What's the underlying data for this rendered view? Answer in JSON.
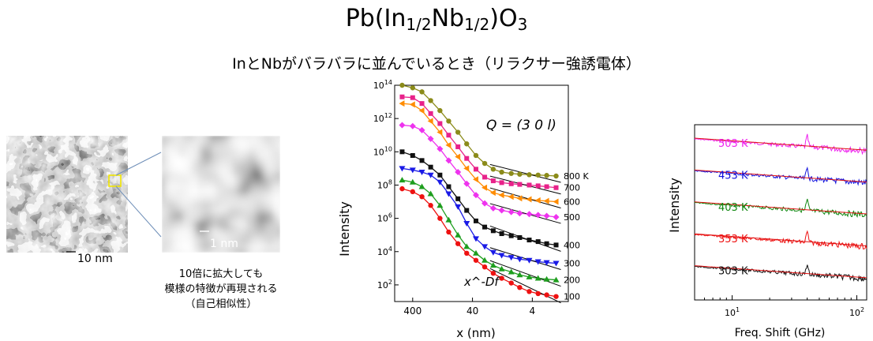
{
  "header": {
    "title_base": "Pb(In",
    "title_sub1": "1/2",
    "title_mid": "Nb",
    "title_sub2": "1/2",
    "title_mid2": ")O",
    "title_sub3": "3",
    "subtitle": "InとNbがバラバラに並んでいるとき（リラクサー強誘電体）"
  },
  "images": {
    "scale_small": "10 nm",
    "scale_large": "1 nm",
    "note_line1": "10倍に拡大しても",
    "note_line2": "模様の特徴が再現される",
    "note_line3": "（自己相似性）"
  },
  "chart_data": [
    {
      "type": "scatter",
      "annotation": "Q = (3 0 l)",
      "fit_label": "x^-Df",
      "xlabel": "x (nm)",
      "ylabel": "Intensity",
      "x_scale": "log",
      "x_reversed": true,
      "xlim": [
        800,
        1
      ],
      "y_scale": "log",
      "ylim": [
        10,
        100000000000000.0
      ],
      "x_tick_labels": [
        "400",
        "40",
        "4"
      ],
      "y_tick_labels": [
        "10^14",
        "10^12",
        "10^10",
        "10^8",
        "10^6",
        "10^4",
        "10^2"
      ],
      "x": [
        600,
        400,
        280,
        200,
        140,
        100,
        70,
        50,
        35,
        25,
        18,
        13,
        9,
        6.5,
        4.5,
        3.2,
        2.3,
        1.6
      ],
      "series": [
        {
          "name": "800 K",
          "color": "#8b8b1a",
          "marker": "circle",
          "values": [
            100000000000000.0,
            70000000000000.0,
            40000000000000.0,
            12000000000000.0,
            3000000000000.0,
            700000000000.0,
            150000000000.0,
            30000000000.0,
            6000000000.0,
            2000000000.0,
            900000000.0,
            600000000.0,
            500000000.0,
            450000000.0,
            420000000.0,
            400000000.0,
            380000000.0,
            350000000.0
          ]
        },
        {
          "name": "700",
          "color": "#e8228a",
          "marker": "square",
          "values": [
            20000000000000.0,
            18000000000000.0,
            8000000000000.0,
            2000000000000.0,
            500000000000.0,
            100000000000.0,
            20000000000.0,
            4000000000.0,
            900000000.0,
            300000000.0,
            180000000.0,
            140000000.0,
            120000000.0,
            110000000.0,
            100000000.0,
            90000000.0,
            80000000.0,
            70000000.0
          ]
        },
        {
          "name": "600",
          "color": "#ff8c00",
          "marker": "triangle-left",
          "values": [
            8000000000000.0,
            7000000000000.0,
            3000000000000.0,
            700000000000.0,
            150000000000.0,
            25000000000.0,
            5000000000.0,
            1000000000.0,
            220000000.0,
            70000000.0,
            35000000.0,
            25000000.0,
            20000000.0,
            16000000.0,
            14000000.0,
            12000000.0,
            11000000.0,
            10000000.0
          ]
        },
        {
          "name": "500",
          "color": "#ee33ee",
          "marker": "diamond",
          "values": [
            400000000000.0,
            350000000000.0,
            200000000000.0,
            60000000000.0,
            15000000000.0,
            3000000000.0,
            600000000.0,
            120000000.0,
            25000000.0,
            8000000.0,
            4000000.0,
            3000000.0,
            2400000.0,
            2000000.0,
            1800000.0,
            1600000.0,
            1400000.0,
            1200000.0
          ]
        },
        {
          "name": "400",
          "color": "#111111",
          "marker": "square",
          "values": [
            10000000000.0,
            6000000000.0,
            3000000000.0,
            1200000000.0,
            400000000.0,
            80000000.0,
            15000000.0,
            3000000.0,
            700000.0,
            300000.0,
            180000.0,
            120000.0,
            90000.0,
            70000.0,
            50000.0,
            40000.0,
            30000.0,
            25000.0
          ]
        },
        {
          "name": "300",
          "color": "#1a1ae6",
          "marker": "triangle-down",
          "values": [
            1000000000.0,
            800000000.0,
            600000000.0,
            400000000.0,
            150000000.0,
            30000000.0,
            5000000.0,
            500000.0,
            60000.0,
            20000.0,
            9000.0,
            6000.0,
            4500.0,
            3500.0,
            3000.0,
            2500.0,
            2200.0,
            2000.0
          ]
        },
        {
          "name": "200",
          "color": "#1e9e1e",
          "marker": "triangle-up",
          "values": [
            200000000.0,
            150000000.0,
            80000000.0,
            30000000.0,
            6000000.0,
            800000.0,
            100000.0,
            20000.0,
            8000.0,
            3000.0,
            1500.0,
            900,
            600,
            400,
            300,
            250,
            220,
            200
          ]
        },
        {
          "name": "100",
          "color": "#ee1111",
          "marker": "circle",
          "values": [
            60000000.0,
            40000000.0,
            20000000.0,
            6000000.0,
            1000000.0,
            150000.0,
            30000.0,
            8000.0,
            3000.0,
            1200.0,
            500,
            250,
            130,
            70,
            40,
            30,
            25,
            20
          ]
        }
      ]
    },
    {
      "type": "line",
      "xlabel": "Freq. Shift (GHz)",
      "ylabel": "Intensity",
      "x_scale": "log",
      "xlim": [
        5,
        120
      ],
      "x_tick_labels": [
        "10^1",
        "10^2"
      ],
      "peak_at": 40,
      "series": [
        {
          "name": "503 K",
          "color": "#ee22ee"
        },
        {
          "name": "453 K",
          "color": "#1111dd"
        },
        {
          "name": "403 K",
          "color": "#118811"
        },
        {
          "name": "353 K",
          "color": "#ee1111"
        },
        {
          "name": "303 K",
          "color": "#111111"
        }
      ]
    }
  ]
}
